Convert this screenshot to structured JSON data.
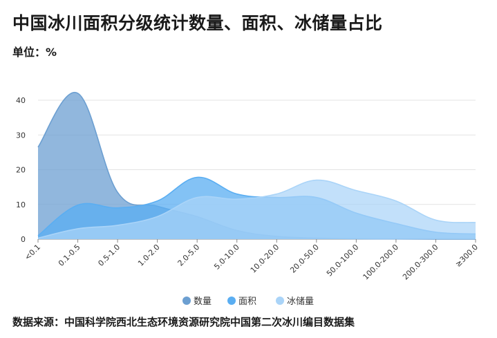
{
  "header": {
    "title": "中国冰川面积分级统计数量、面积、冰储量占比",
    "subtitle": "单位：%"
  },
  "footer": {
    "source": "数据来源：中国科学院西北生态环境资源研究院中国第二次冰川编目数据集"
  },
  "colors": {
    "grid": "#e3e3e3",
    "axis": "#888888",
    "text": "#333333"
  },
  "chart_data": {
    "type": "area",
    "title": "中国冰川面积分级统计数量、面积、冰储量占比",
    "ylabel": "单位：%",
    "xlabel": "",
    "categories": [
      "<0.1",
      "0.1-0.5",
      "0.5-1.0",
      "1.0-2.0",
      "2.0-5.0",
      "5.0-10.0",
      "10.0-20.0",
      "20.0-50.0",
      "50.0-100.0",
      "100.0-200.0",
      "200.0-300.0",
      "≥300.0"
    ],
    "ylim": [
      0,
      40
    ],
    "yticks": [
      0,
      10,
      20,
      30,
      40
    ],
    "grid": true,
    "legend_position": "bottom",
    "series": [
      {
        "name": "数量",
        "color": "#6c9fd1",
        "opacity": 0.75,
        "values": [
          26.5,
          42.0,
          13.5,
          9.5,
          6.5,
          2.5,
          0.8,
          0.3,
          0.1,
          0.05,
          0.02,
          0.02
        ]
      },
      {
        "name": "面积",
        "color": "#5aaef2",
        "opacity": 0.75,
        "values": [
          1.0,
          9.8,
          9.0,
          11.0,
          17.8,
          13.0,
          12.0,
          12.0,
          7.5,
          4.5,
          2.0,
          1.5
        ]
      },
      {
        "name": "冰储量",
        "color": "#aad4f8",
        "opacity": 0.72,
        "values": [
          0.3,
          3.0,
          4.0,
          6.5,
          12.0,
          11.5,
          13.0,
          17.0,
          14.0,
          11.0,
          5.5,
          4.8
        ]
      }
    ]
  }
}
